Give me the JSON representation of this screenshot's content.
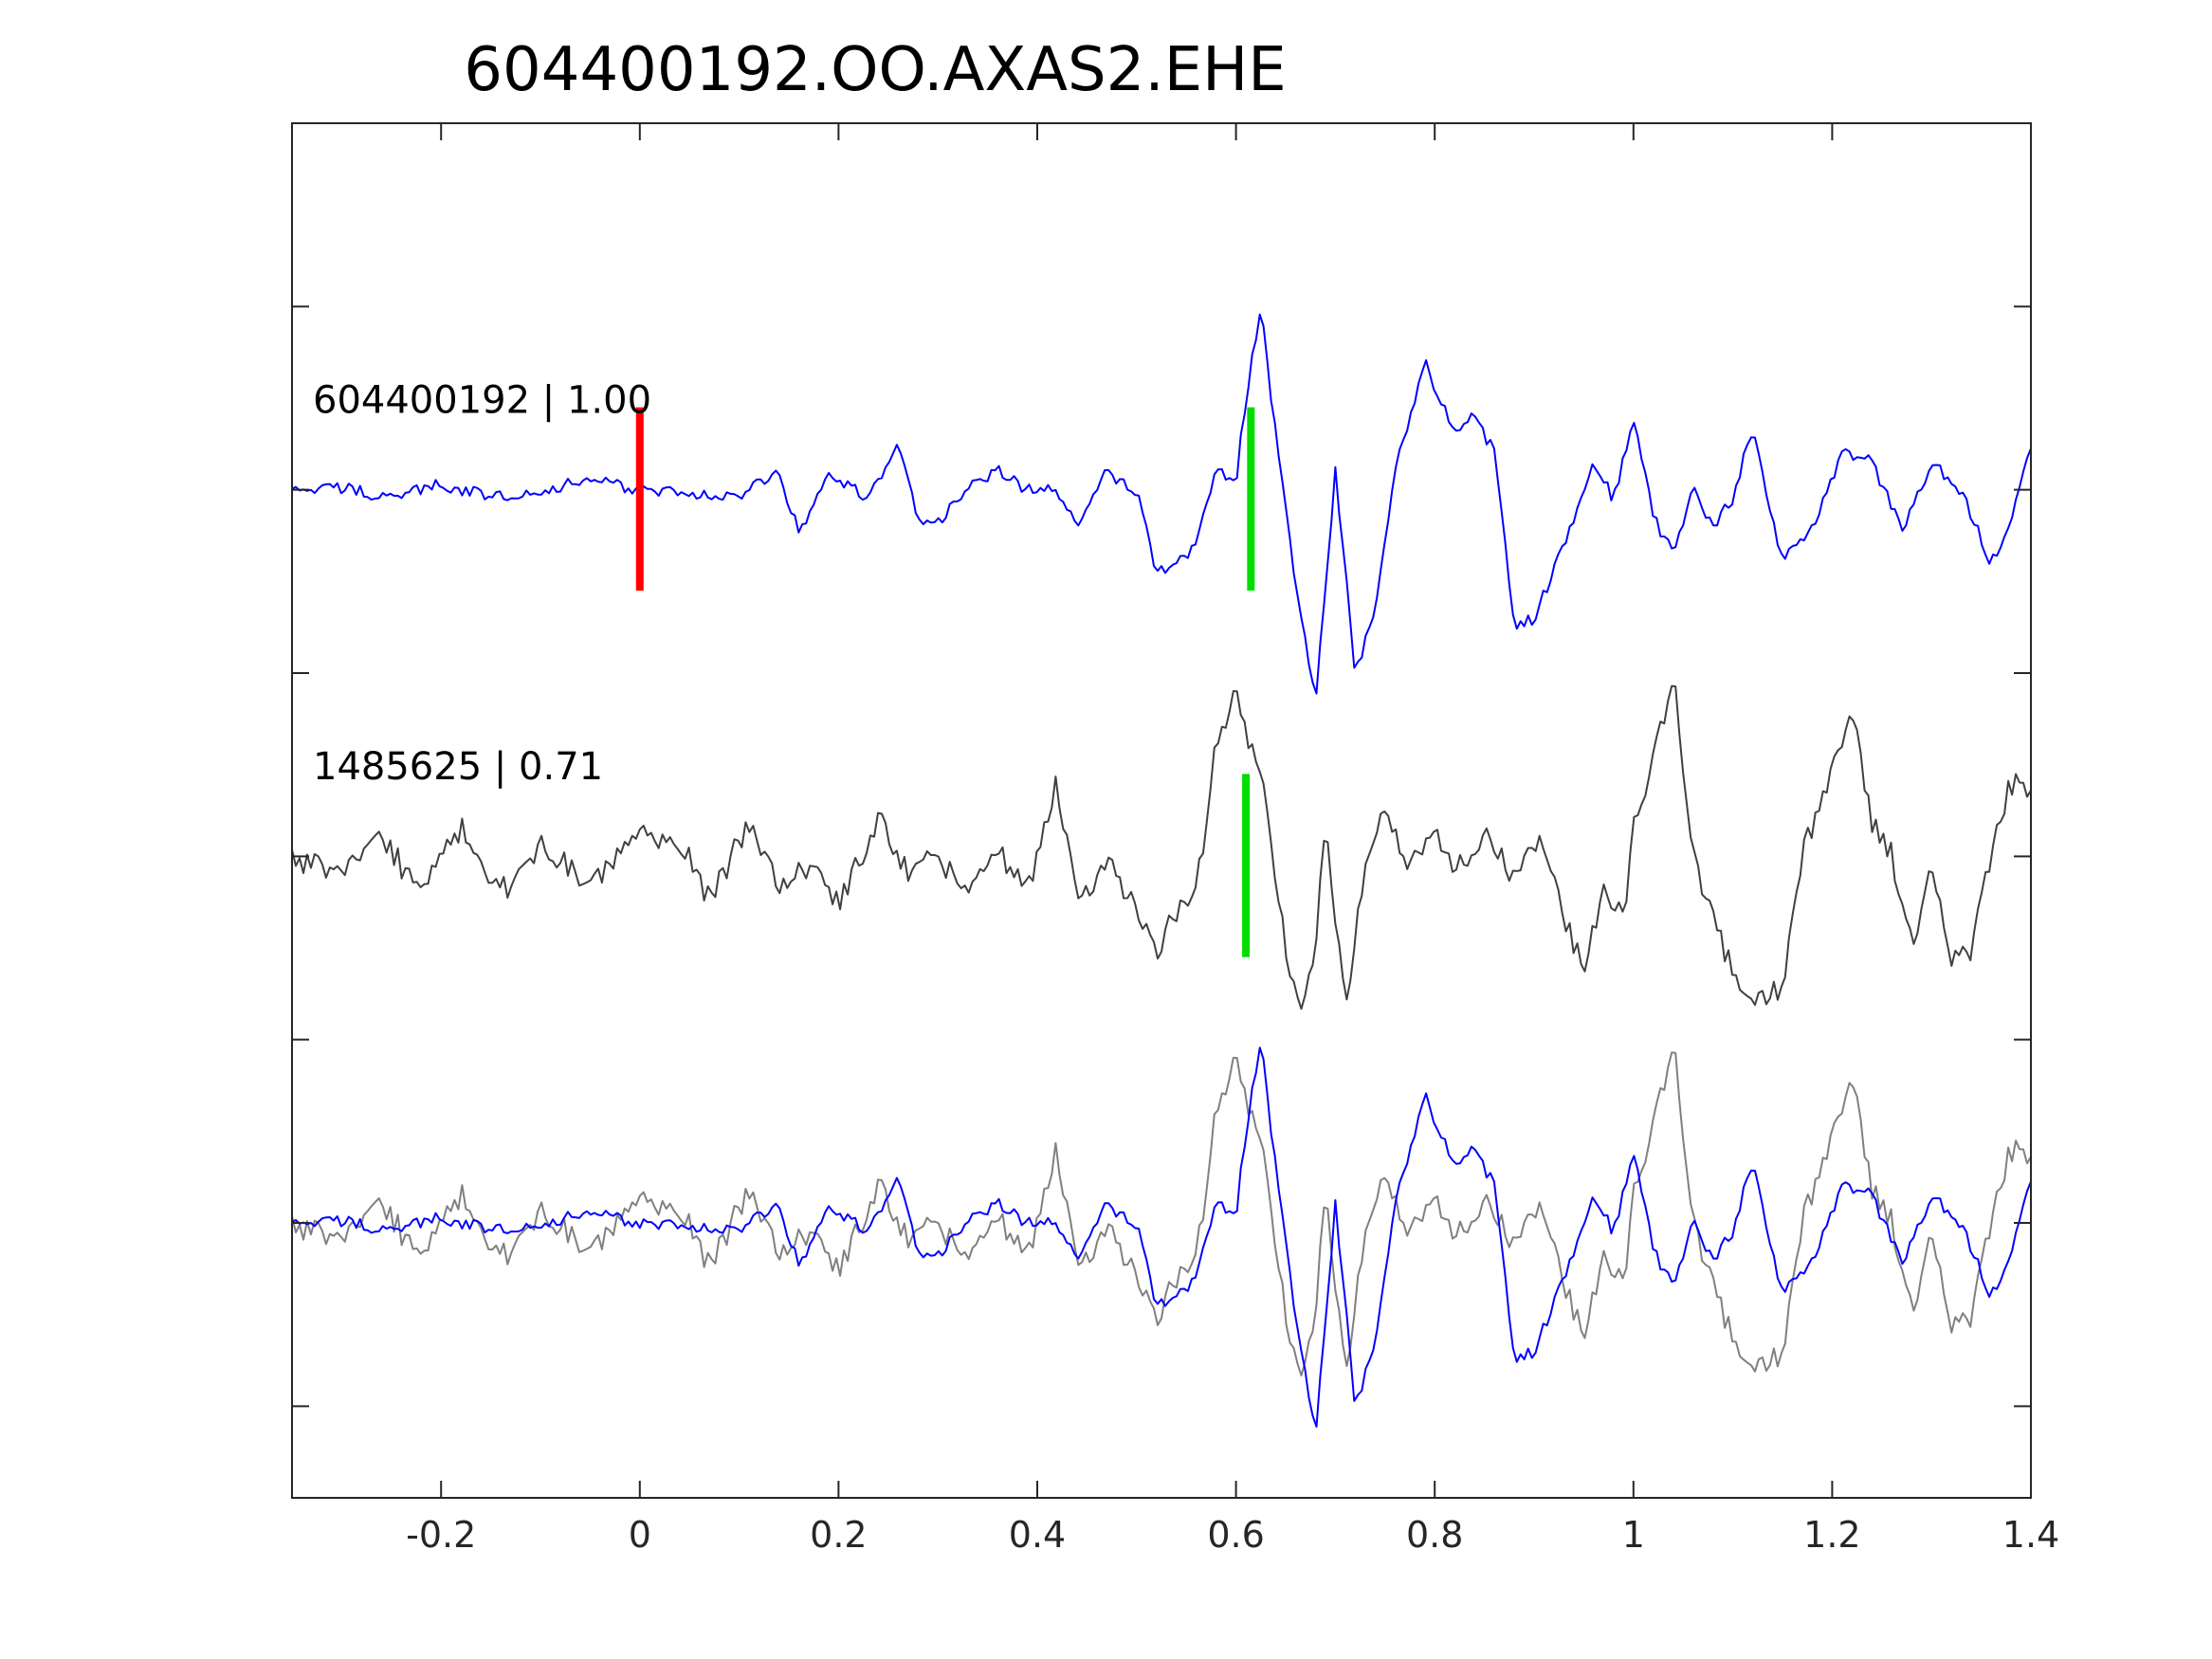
{
  "chart_data": {
    "type": "line",
    "title": "604400192.OO.AXAS2.EHE",
    "xlabel": "",
    "ylabel": "",
    "xlim": [
      -0.35,
      1.4
    ],
    "ylim": [
      0,
      7.5
    ],
    "xticks": [
      -0.2,
      0,
      0.2,
      0.4,
      0.6,
      0.8,
      1,
      1.2,
      1.4
    ],
    "xtick_labels": [
      "-0.2",
      "0",
      "0.2",
      "0.4",
      "0.6",
      "0.8",
      "1",
      "1.2",
      "1.4"
    ],
    "yticks": [
      0.5,
      1.5,
      2.5,
      3.5,
      4.5,
      5.5,
      6.5
    ],
    "grid": false,
    "legend": "none",
    "traces": [
      {
        "label": "604400192 | 1.00",
        "baseline": 5.5,
        "color": "#0000ff",
        "keypoints": [
          [
            -0.35,
            5.49
          ],
          [
            -0.3,
            5.51
          ],
          [
            -0.25,
            5.46
          ],
          [
            -0.2,
            5.53
          ],
          [
            -0.15,
            5.46
          ],
          [
            -0.1,
            5.5
          ],
          [
            -0.05,
            5.55
          ],
          [
            0.0,
            5.5
          ],
          [
            0.05,
            5.48
          ],
          [
            0.1,
            5.46
          ],
          [
            0.14,
            5.6
          ],
          [
            0.16,
            5.26
          ],
          [
            0.19,
            5.6
          ],
          [
            0.23,
            5.45
          ],
          [
            0.26,
            5.75
          ],
          [
            0.28,
            5.35
          ],
          [
            0.3,
            5.32
          ],
          [
            0.33,
            5.5
          ],
          [
            0.36,
            5.6
          ],
          [
            0.39,
            5.5
          ],
          [
            0.42,
            5.5
          ],
          [
            0.44,
            5.3
          ],
          [
            0.47,
            5.6
          ],
          [
            0.5,
            5.5
          ],
          [
            0.52,
            5.05
          ],
          [
            0.54,
            5.1
          ],
          [
            0.56,
            5.2
          ],
          [
            0.58,
            5.6
          ],
          [
            0.6,
            5.55
          ],
          [
            0.61,
            6.0
          ],
          [
            0.625,
            6.5
          ],
          [
            0.635,
            6.0
          ],
          [
            0.66,
            5.0
          ],
          [
            0.68,
            4.35
          ],
          [
            0.7,
            5.6
          ],
          [
            0.72,
            4.5
          ],
          [
            0.74,
            4.85
          ],
          [
            0.76,
            5.6
          ],
          [
            0.79,
            6.2
          ],
          [
            0.82,
            5.8
          ],
          [
            0.84,
            5.9
          ],
          [
            0.86,
            5.7
          ],
          [
            0.88,
            4.75
          ],
          [
            0.9,
            4.8
          ],
          [
            0.93,
            5.2
          ],
          [
            0.96,
            5.65
          ],
          [
            0.98,
            5.45
          ],
          [
            1.0,
            5.9
          ],
          [
            1.02,
            5.35
          ],
          [
            1.04,
            5.15
          ],
          [
            1.06,
            5.5
          ],
          [
            1.08,
            5.3
          ],
          [
            1.1,
            5.45
          ],
          [
            1.12,
            5.85
          ],
          [
            1.15,
            5.1
          ],
          [
            1.18,
            5.3
          ],
          [
            1.21,
            5.7
          ],
          [
            1.24,
            5.65
          ],
          [
            1.27,
            5.28
          ],
          [
            1.3,
            5.65
          ],
          [
            1.33,
            5.5
          ],
          [
            1.36,
            5.1
          ],
          [
            1.38,
            5.35
          ],
          [
            1.4,
            5.75
          ]
        ]
      },
      {
        "label": "1485625 | 0.71",
        "baseline": 3.5,
        "color": "#404040",
        "keypoints": [
          [
            -0.35,
            3.5
          ],
          [
            -0.3,
            3.4
          ],
          [
            -0.26,
            3.6
          ],
          [
            -0.22,
            3.3
          ],
          [
            -0.18,
            3.65
          ],
          [
            -0.14,
            3.3
          ],
          [
            -0.1,
            3.55
          ],
          [
            -0.05,
            3.35
          ],
          [
            0.0,
            3.6
          ],
          [
            0.04,
            3.6
          ],
          [
            0.07,
            3.25
          ],
          [
            0.11,
            3.7
          ],
          [
            0.14,
            3.3
          ],
          [
            0.17,
            3.45
          ],
          [
            0.2,
            3.25
          ],
          [
            0.24,
            3.7
          ],
          [
            0.27,
            3.4
          ],
          [
            0.3,
            3.5
          ],
          [
            0.33,
            3.3
          ],
          [
            0.36,
            3.55
          ],
          [
            0.39,
            3.3
          ],
          [
            0.42,
            3.9
          ],
          [
            0.44,
            3.25
          ],
          [
            0.47,
            3.45
          ],
          [
            0.5,
            3.25
          ],
          [
            0.52,
            2.95
          ],
          [
            0.54,
            3.2
          ],
          [
            0.56,
            3.3
          ],
          [
            0.58,
            4.1
          ],
          [
            0.6,
            4.4
          ],
          [
            0.63,
            3.8
          ],
          [
            0.65,
            3.0
          ],
          [
            0.665,
            2.6
          ],
          [
            0.68,
            3.0
          ],
          [
            0.69,
            3.7
          ],
          [
            0.71,
            2.7
          ],
          [
            0.73,
            3.4
          ],
          [
            0.75,
            3.8
          ],
          [
            0.77,
            3.45
          ],
          [
            0.8,
            3.6
          ],
          [
            0.82,
            3.45
          ],
          [
            0.85,
            3.6
          ],
          [
            0.88,
            3.4
          ],
          [
            0.91,
            3.6
          ],
          [
            0.93,
            3.15
          ],
          [
            0.95,
            2.9
          ],
          [
            0.97,
            3.3
          ],
          [
            0.99,
            3.15
          ],
          [
            1.0,
            3.7
          ],
          [
            1.02,
            4.0
          ],
          [
            1.04,
            4.5
          ],
          [
            1.06,
            3.5
          ],
          [
            1.09,
            3.0
          ],
          [
            1.12,
            2.7
          ],
          [
            1.15,
            2.8
          ],
          [
            1.17,
            3.5
          ],
          [
            1.2,
            4.0
          ],
          [
            1.22,
            4.3
          ],
          [
            1.24,
            3.7
          ],
          [
            1.26,
            3.5
          ],
          [
            1.28,
            3.0
          ],
          [
            1.3,
            3.5
          ],
          [
            1.32,
            2.9
          ],
          [
            1.34,
            3.0
          ],
          [
            1.36,
            3.5
          ],
          [
            1.38,
            3.9
          ],
          [
            1.4,
            3.85
          ]
        ]
      },
      {
        "label": "",
        "baseline": 1.5,
        "color": "#808080",
        "keypoints": [
          [
            -0.35,
            1.5
          ],
          [
            -0.3,
            1.4
          ],
          [
            -0.26,
            1.6
          ],
          [
            -0.22,
            1.3
          ],
          [
            -0.18,
            1.65
          ],
          [
            -0.14,
            1.3
          ],
          [
            -0.1,
            1.55
          ],
          [
            -0.05,
            1.35
          ],
          [
            0.0,
            1.6
          ],
          [
            0.04,
            1.6
          ],
          [
            0.07,
            1.25
          ],
          [
            0.11,
            1.7
          ],
          [
            0.14,
            1.3
          ],
          [
            0.17,
            1.45
          ],
          [
            0.2,
            1.25
          ],
          [
            0.24,
            1.7
          ],
          [
            0.27,
            1.4
          ],
          [
            0.3,
            1.5
          ],
          [
            0.33,
            1.3
          ],
          [
            0.36,
            1.55
          ],
          [
            0.39,
            1.3
          ],
          [
            0.42,
            1.9
          ],
          [
            0.44,
            1.25
          ],
          [
            0.47,
            1.45
          ],
          [
            0.5,
            1.25
          ],
          [
            0.52,
            0.95
          ],
          [
            0.54,
            1.2
          ],
          [
            0.56,
            1.3
          ],
          [
            0.58,
            2.1
          ],
          [
            0.6,
            2.4
          ],
          [
            0.63,
            1.8
          ],
          [
            0.65,
            1.0
          ],
          [
            0.665,
            0.6
          ],
          [
            0.68,
            1.0
          ],
          [
            0.69,
            1.7
          ],
          [
            0.71,
            0.7
          ],
          [
            0.73,
            1.4
          ],
          [
            0.75,
            1.8
          ],
          [
            0.77,
            1.45
          ],
          [
            0.8,
            1.6
          ],
          [
            0.82,
            1.45
          ],
          [
            0.85,
            1.6
          ],
          [
            0.88,
            1.4
          ],
          [
            0.91,
            1.6
          ],
          [
            0.93,
            1.15
          ],
          [
            0.95,
            0.9
          ],
          [
            0.97,
            1.3
          ],
          [
            0.99,
            1.15
          ],
          [
            1.0,
            1.7
          ],
          [
            1.02,
            2.0
          ],
          [
            1.04,
            2.5
          ],
          [
            1.06,
            1.5
          ],
          [
            1.09,
            1.0
          ],
          [
            1.12,
            0.7
          ],
          [
            1.15,
            0.8
          ],
          [
            1.17,
            1.5
          ],
          [
            1.2,
            2.0
          ],
          [
            1.22,
            2.3
          ],
          [
            1.24,
            1.7
          ],
          [
            1.26,
            1.5
          ],
          [
            1.28,
            1.0
          ],
          [
            1.3,
            1.5
          ],
          [
            1.32,
            0.9
          ],
          [
            1.34,
            1.0
          ],
          [
            1.36,
            1.5
          ],
          [
            1.38,
            1.9
          ],
          [
            1.4,
            1.85
          ]
        ]
      },
      {
        "label": "",
        "baseline": 1.5,
        "color": "#0000ff",
        "keypoints": [
          [
            -0.35,
            1.49
          ],
          [
            -0.3,
            1.51
          ],
          [
            -0.25,
            1.46
          ],
          [
            -0.2,
            1.53
          ],
          [
            -0.15,
            1.46
          ],
          [
            -0.1,
            1.5
          ],
          [
            -0.05,
            1.55
          ],
          [
            0.0,
            1.5
          ],
          [
            0.05,
            1.48
          ],
          [
            0.1,
            1.46
          ],
          [
            0.14,
            1.6
          ],
          [
            0.16,
            1.26
          ],
          [
            0.19,
            1.6
          ],
          [
            0.23,
            1.45
          ],
          [
            0.26,
            1.75
          ],
          [
            0.28,
            1.35
          ],
          [
            0.3,
            1.32
          ],
          [
            0.33,
            1.5
          ],
          [
            0.36,
            1.6
          ],
          [
            0.39,
            1.5
          ],
          [
            0.42,
            1.5
          ],
          [
            0.44,
            1.3
          ],
          [
            0.47,
            1.6
          ],
          [
            0.5,
            1.5
          ],
          [
            0.52,
            1.05
          ],
          [
            0.54,
            1.1
          ],
          [
            0.56,
            1.2
          ],
          [
            0.58,
            1.6
          ],
          [
            0.6,
            1.55
          ],
          [
            0.61,
            2.0
          ],
          [
            0.625,
            2.5
          ],
          [
            0.635,
            2.0
          ],
          [
            0.66,
            1.0
          ],
          [
            0.68,
            0.35
          ],
          [
            0.7,
            1.6
          ],
          [
            0.72,
            0.5
          ],
          [
            0.74,
            0.85
          ],
          [
            0.76,
            1.6
          ],
          [
            0.79,
            2.2
          ],
          [
            0.82,
            1.8
          ],
          [
            0.84,
            1.9
          ],
          [
            0.86,
            1.7
          ],
          [
            0.88,
            0.75
          ],
          [
            0.9,
            0.8
          ],
          [
            0.93,
            1.2
          ],
          [
            0.96,
            1.65
          ],
          [
            0.98,
            1.45
          ],
          [
            1.0,
            1.9
          ],
          [
            1.02,
            1.35
          ],
          [
            1.04,
            1.15
          ],
          [
            1.06,
            1.5
          ],
          [
            1.08,
            1.3
          ],
          [
            1.1,
            1.45
          ],
          [
            1.12,
            1.85
          ],
          [
            1.15,
            1.1
          ],
          [
            1.18,
            1.3
          ],
          [
            1.21,
            1.7
          ],
          [
            1.24,
            1.65
          ],
          [
            1.27,
            1.28
          ],
          [
            1.3,
            1.65
          ],
          [
            1.33,
            1.5
          ],
          [
            1.36,
            1.1
          ],
          [
            1.38,
            1.35
          ],
          [
            1.4,
            1.75
          ]
        ]
      }
    ],
    "picks": [
      {
        "x": 0.0,
        "y_range": [
          4.95,
          5.95
        ],
        "color": "#ff0000"
      },
      {
        "x": 0.615,
        "y_range": [
          4.95,
          5.95
        ],
        "color": "#00dd00"
      },
      {
        "x": 0.61,
        "y_range": [
          2.95,
          3.95
        ],
        "color": "#00dd00"
      }
    ]
  }
}
